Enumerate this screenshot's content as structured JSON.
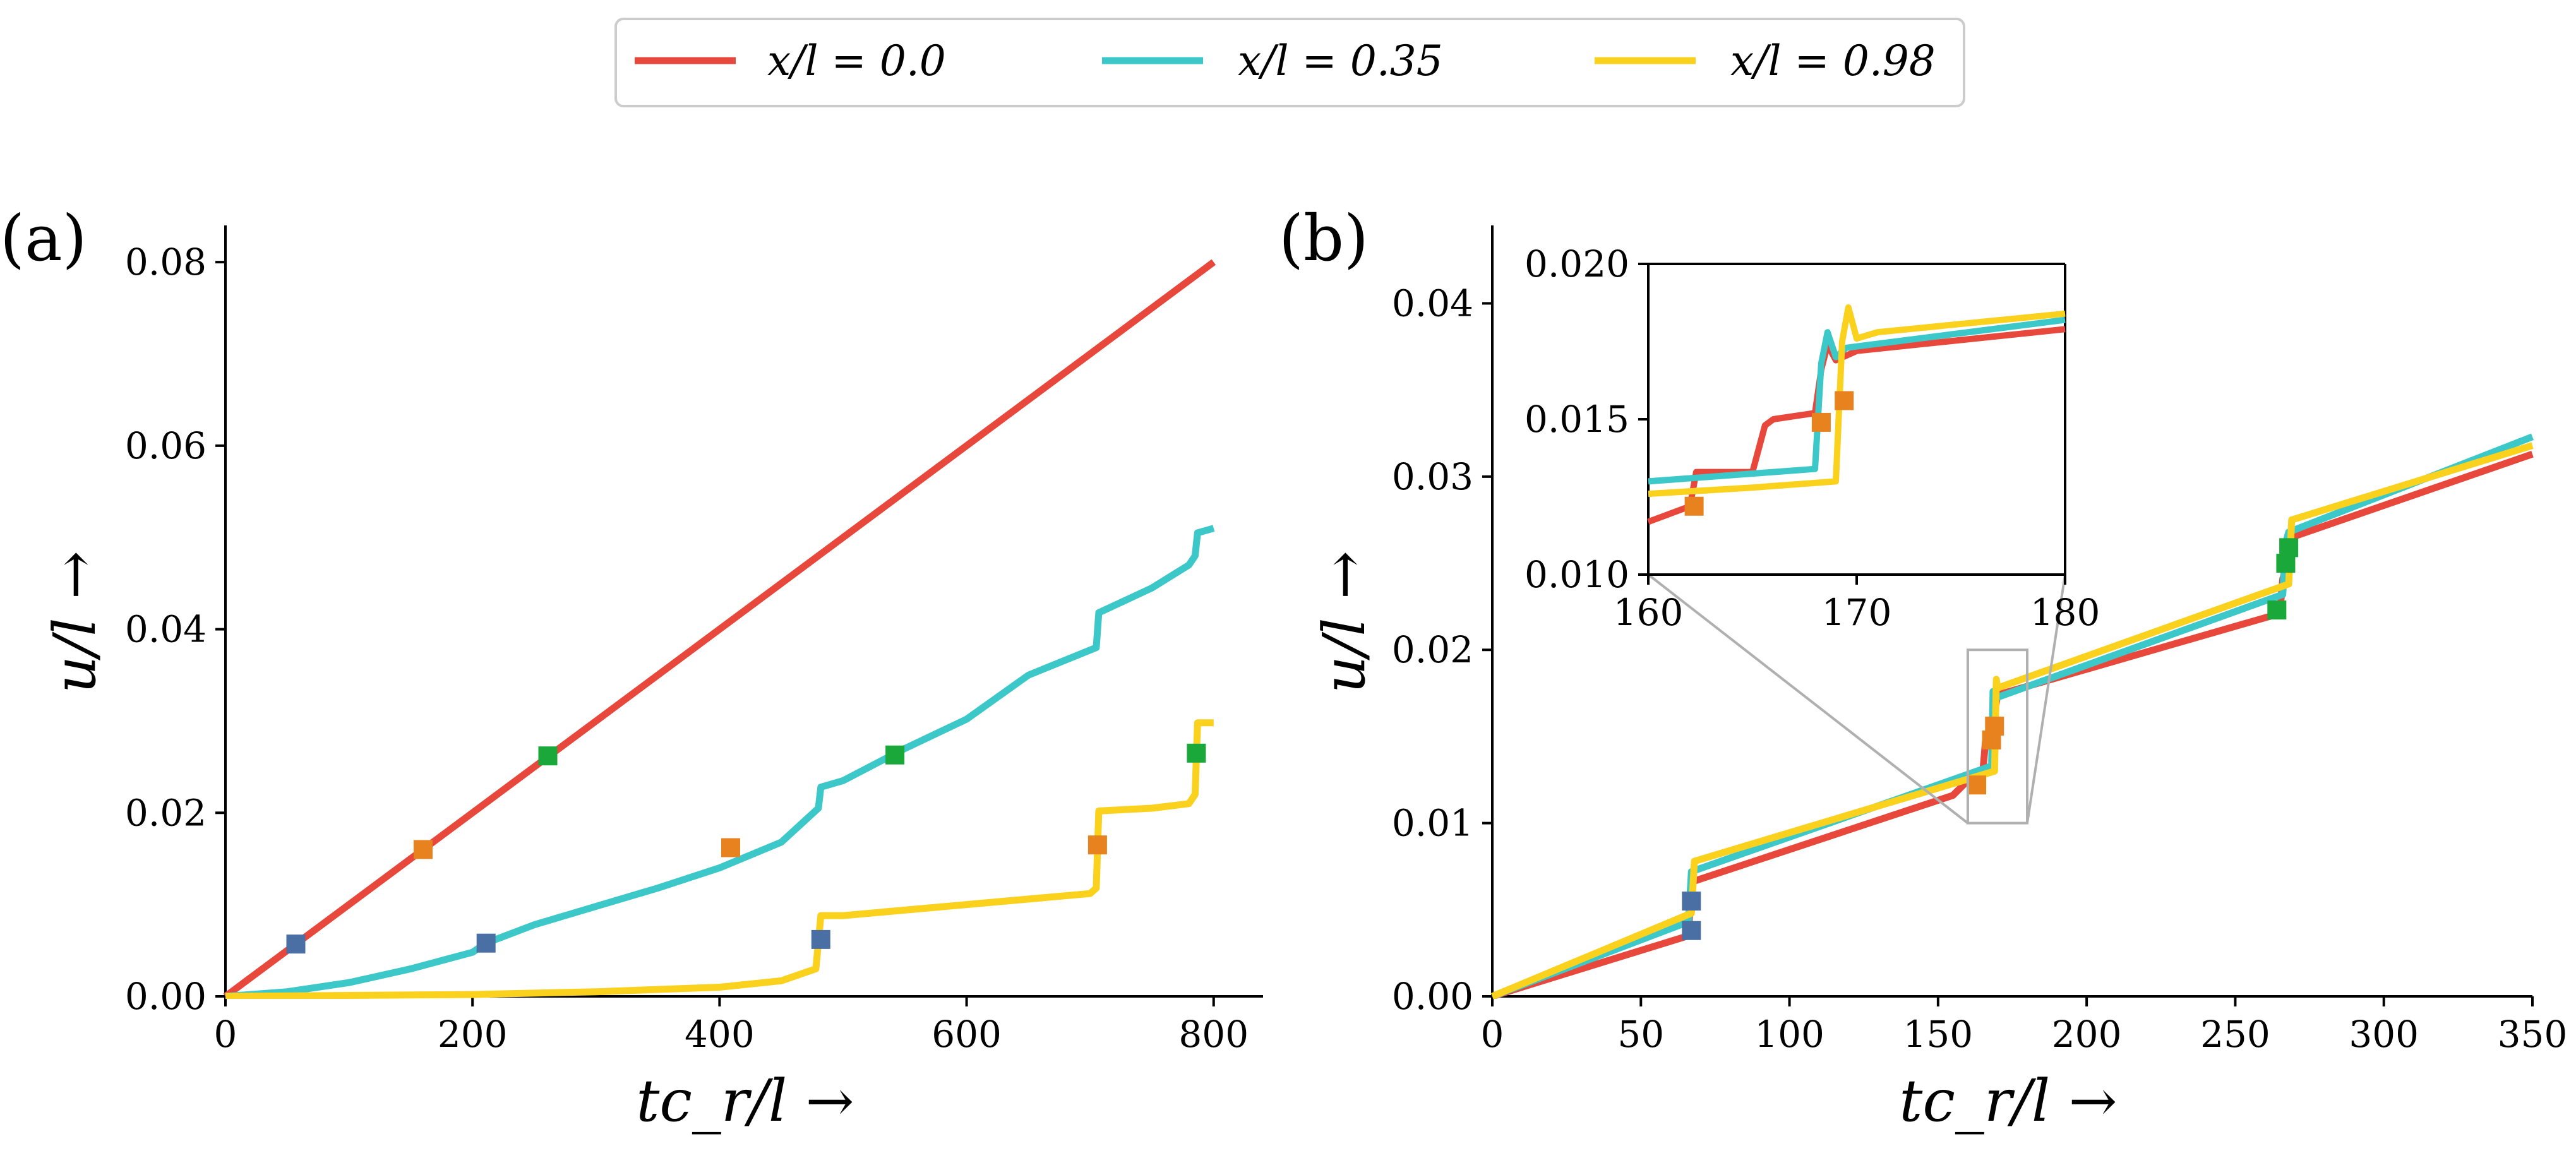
{
  "legend": {
    "entries": [
      {
        "label": "x/l = 0.0",
        "color": "#e8473b"
      },
      {
        "label": "x/l = 0.35",
        "color": "#3cc8c8"
      },
      {
        "label": "x/l = 0.98",
        "color": "#fad21e"
      }
    ]
  },
  "marker_colors": {
    "blue": "#4a6fa5",
    "orange": "#e8821e",
    "green": "#1aa83a"
  },
  "chart_data": [
    {
      "panel_label": "(a)",
      "type": "line",
      "xlabel": "tc_r/l →",
      "ylabel": "u/l →",
      "xlim": [
        0,
        840
      ],
      "ylim": [
        0,
        0.084
      ],
      "xticks": [
        0,
        200,
        400,
        600,
        800
      ],
      "xtick_labels": [
        "0",
        "200",
        "400",
        "600",
        "800"
      ],
      "yticks": [
        0,
        0.02,
        0.04,
        0.06,
        0.08
      ],
      "ytick_labels": [
        "0.00",
        "0.02",
        "0.04",
        "0.06",
        "0.08"
      ],
      "series": [
        {
          "name": "x/l = 0.0",
          "color": "#e8473b",
          "x": [
            0,
            800
          ],
          "y": [
            0,
            0.08
          ]
        },
        {
          "name": "x/l = 0.35",
          "color": "#3cc8c8",
          "x": [
            0,
            50,
            100,
            150,
            200,
            211,
            250,
            300,
            350,
            400,
            450,
            480,
            482,
            500,
            550,
            600,
            650,
            705,
            707,
            750,
            780,
            785,
            787,
            800
          ],
          "y": [
            0,
            0.0005,
            0.0015,
            0.003,
            0.0048,
            0.0058,
            0.0078,
            0.0098,
            0.0118,
            0.014,
            0.0168,
            0.0205,
            0.0228,
            0.0235,
            0.027,
            0.0302,
            0.035,
            0.038,
            0.0418,
            0.0445,
            0.047,
            0.048,
            0.0505,
            0.051
          ]
        },
        {
          "name": "x/l = 0.98",
          "color": "#fad21e",
          "x": [
            0,
            100,
            200,
            300,
            400,
            450,
            478,
            482,
            500,
            600,
            700,
            705,
            707,
            750,
            780,
            785,
            787,
            800
          ],
          "y": [
            0,
            0.0001,
            0.0002,
            0.0005,
            0.001,
            0.0017,
            0.003,
            0.0088,
            0.0088,
            0.01,
            0.0112,
            0.0118,
            0.0202,
            0.0205,
            0.021,
            0.022,
            0.0298,
            0.0298
          ]
        }
      ],
      "markers": [
        {
          "color": "blue",
          "x": 57,
          "y": 0.0057
        },
        {
          "color": "orange",
          "x": 160,
          "y": 0.016
        },
        {
          "color": "green",
          "x": 261,
          "y": 0.0262
        },
        {
          "color": "blue",
          "x": 211,
          "y": 0.0058
        },
        {
          "color": "orange",
          "x": 409,
          "y": 0.0162
        },
        {
          "color": "green",
          "x": 542,
          "y": 0.0263
        },
        {
          "color": "blue",
          "x": 482,
          "y": 0.0062
        },
        {
          "color": "orange",
          "x": 706,
          "y": 0.0165
        },
        {
          "color": "green",
          "x": 786,
          "y": 0.0265
        }
      ]
    },
    {
      "panel_label": "(b)",
      "type": "line",
      "xlabel": "tc_r/l →",
      "ylabel": "u/l →",
      "xlim": [
        0,
        350
      ],
      "ylim": [
        0,
        0.0445
      ],
      "xticks": [
        0,
        50,
        100,
        150,
        200,
        250,
        300,
        350
      ],
      "xtick_labels": [
        "0",
        "50",
        "100",
        "150",
        "200",
        "250",
        "300",
        "350"
      ],
      "yticks": [
        0,
        0.01,
        0.02,
        0.03,
        0.04
      ],
      "ytick_labels": [
        "0.00",
        "0.01",
        "0.02",
        "0.03",
        "0.04"
      ],
      "series": [
        {
          "name": "x/l = 0.0",
          "color": "#e8473b",
          "x": [
            0,
            66,
            67,
            155,
            162,
            165,
            166,
            168,
            169,
            170,
            265,
            266,
            268,
            269,
            350
          ],
          "y": [
            0,
            0.0035,
            0.0066,
            0.0116,
            0.0128,
            0.0128,
            0.0148,
            0.015,
            0.0163,
            0.0174,
            0.0221,
            0.0241,
            0.0252,
            0.0265,
            0.0313
          ]
        },
        {
          "name": "x/l = 0.35",
          "color": "#3cc8c8",
          "x": [
            0,
            66,
            67,
            168,
            168.5,
            169,
            266,
            267,
            268,
            350
          ],
          "y": [
            0,
            0.0043,
            0.0072,
            0.0133,
            0.0176,
            0.0172,
            0.0232,
            0.0262,
            0.0268,
            0.0323
          ]
        },
        {
          "name": "x/l = 0.98",
          "color": "#fad21e",
          "x": [
            0,
            67,
            68,
            169,
            169.6,
            170,
            268,
            269,
            350
          ],
          "y": [
            0,
            0.0048,
            0.0078,
            0.013,
            0.0183,
            0.0178,
            0.0238,
            0.0275,
            0.0318
          ]
        }
      ],
      "markers": [
        {
          "color": "blue",
          "x": 67,
          "y": 0.0038
        },
        {
          "color": "blue",
          "x": 67,
          "y": 0.0055
        },
        {
          "color": "orange",
          "x": 163,
          "y": 0.0122
        },
        {
          "color": "orange",
          "x": 168,
          "y": 0.0148
        },
        {
          "color": "orange",
          "x": 169,
          "y": 0.0156
        },
        {
          "color": "green",
          "x": 264,
          "y": 0.0223
        },
        {
          "color": "green",
          "x": 267,
          "y": 0.025
        },
        {
          "color": "green",
          "x": 268,
          "y": 0.0259
        }
      ],
      "zoom_box": {
        "x": [
          160,
          180
        ],
        "y": [
          0.01,
          0.02
        ]
      },
      "inset": {
        "xlim": [
          160,
          180
        ],
        "ylim": [
          0.01,
          0.02
        ],
        "xticks": [
          160,
          170,
          180
        ],
        "xtick_labels": [
          "160",
          "170",
          "180"
        ],
        "yticks": [
          0.01,
          0.015,
          0.02
        ],
        "ytick_labels": [
          "0.010",
          "0.015",
          "0.020"
        ],
        "series": [
          {
            "name": "x/l = 0.0",
            "color": "#e8473b",
            "x": [
              160,
              162,
              162.3,
              165,
              165.6,
              166,
              168,
              168.3,
              168.6,
              169,
              170,
              180
            ],
            "y": [
              0.0117,
              0.0122,
              0.0133,
              0.0133,
              0.0148,
              0.015,
              0.0152,
              0.0166,
              0.0174,
              0.0169,
              0.0172,
              0.0179
            ]
          },
          {
            "name": "x/l = 0.35",
            "color": "#3cc8c8",
            "x": [
              160,
              166,
              168,
              168.3,
              168.6,
              169,
              169.5,
              180
            ],
            "y": [
              0.013,
              0.0133,
              0.0134,
              0.0168,
              0.0178,
              0.017,
              0.0173,
              0.0182
            ]
          },
          {
            "name": "x/l = 0.98",
            "color": "#fad21e",
            "x": [
              160,
              165,
              169,
              169.3,
              169.6,
              170,
              171,
              180
            ],
            "y": [
              0.0126,
              0.0128,
              0.013,
              0.0175,
              0.0186,
              0.0176,
              0.0178,
              0.0184
            ]
          }
        ],
        "markers": [
          {
            "color": "orange",
            "x": 162.2,
            "y": 0.0122
          },
          {
            "color": "orange",
            "x": 168.3,
            "y": 0.0149
          },
          {
            "color": "orange",
            "x": 169.4,
            "y": 0.0156
          }
        ]
      }
    }
  ]
}
